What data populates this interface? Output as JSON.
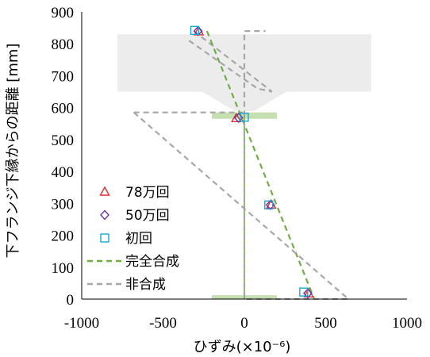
{
  "chart_data": {
    "type": "scatter",
    "xlabel": "ひずみ(×10⁻⁶)",
    "ylabel": "下フランジ下縁からの距離 [mm]",
    "xlim": [
      -1000,
      1000
    ],
    "ylim": [
      0,
      900
    ],
    "xticks": [
      "-1000",
      "-500",
      "0",
      "500",
      "1000"
    ],
    "yticks": [
      "0",
      "100",
      "200",
      "300",
      "400",
      "500",
      "600",
      "700",
      "800",
      "900"
    ],
    "grid": false,
    "legend_position": "lower-left",
    "series": [
      {
        "name": "78万回",
        "kind": "marker",
        "marker": "triangle",
        "color": "#e03030",
        "points": [
          [
            -280,
            838
          ],
          [
            -50,
            566
          ],
          [
            165,
            295
          ],
          [
            395,
            17
          ]
        ]
      },
      {
        "name": "50万回",
        "kind": "marker",
        "marker": "diamond",
        "color": "#7030a0",
        "points": [
          [
            -285,
            840
          ],
          [
            -35,
            568
          ],
          [
            160,
            295
          ],
          [
            390,
            18
          ]
        ]
      },
      {
        "name": "初回",
        "kind": "marker",
        "marker": "square",
        "color": "#17a8d8",
        "points": [
          [
            -305,
            842
          ],
          [
            0,
            570
          ],
          [
            150,
            295
          ],
          [
            365,
            22
          ]
        ]
      },
      {
        "name": "完全合成",
        "kind": "line",
        "style": "dashed",
        "color": "#70ad47",
        "points": [
          [
            -230,
            840
          ],
          [
            430,
            0
          ]
        ]
      },
      {
        "name": "非合成",
        "kind": "line",
        "style": "dashed",
        "color": "#a6a6a6",
        "points": [
          [
            -680,
            585
          ],
          [
            640,
            0
          ],
          [
            0,
            0
          ],
          [
            0,
            840
          ],
          [
            130,
            840
          ]
        ]
      }
    ],
    "extra_lines": [
      {
        "kind": "line",
        "style": "dashed",
        "color": "#a6a6a6",
        "points": [
          [
            -310,
            840
          ],
          [
            170,
            650
          ]
        ]
      },
      {
        "kind": "line",
        "style": "dashed",
        "color": "#a6a6a6",
        "points": [
          [
            -340,
            810
          ],
          [
            80,
            660
          ],
          [
            170,
            650
          ]
        ]
      },
      {
        "kind": "line",
        "style": "dashed",
        "color": "#a6a6a6",
        "points": [
          [
            -680,
            585
          ],
          [
            -10,
            585
          ]
        ]
      },
      {
        "kind": "line",
        "style": "solid",
        "color": "#70ad47",
        "points": [
          [
            0,
            0
          ],
          [
            0,
            585
          ]
        ]
      }
    ],
    "background_shapes": [
      {
        "kind": "rect",
        "color": "#ececec",
        "x": [
          -780,
          780
        ],
        "y": [
          650,
          830
        ]
      },
      {
        "kind": "trapezoid",
        "color": "#ececec",
        "top_x": [
          -260,
          260
        ],
        "bottom_x": [
          -60,
          60
        ],
        "y": [
          590,
          650
        ]
      },
      {
        "kind": "rect",
        "color": "#c5dfb1",
        "x": [
          -200,
          200
        ],
        "y": [
          565,
          585
        ]
      },
      {
        "kind": "rect",
        "color": "#c5dfb1",
        "x": [
          -200,
          200
        ],
        "y": [
          0,
          12
        ]
      }
    ]
  }
}
